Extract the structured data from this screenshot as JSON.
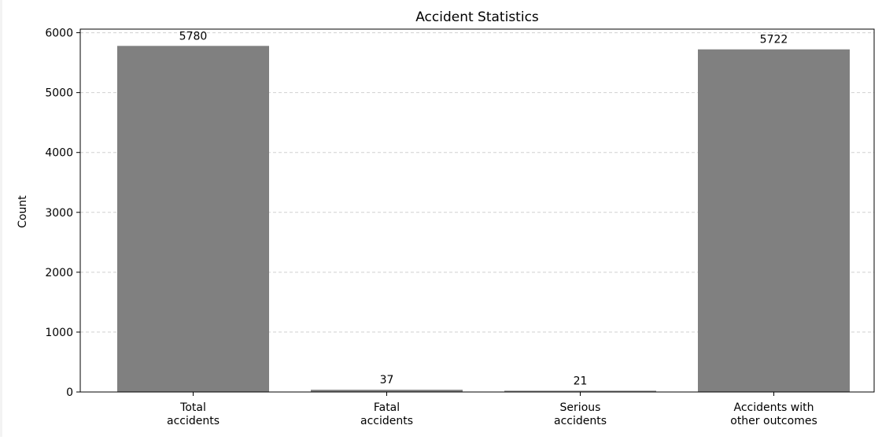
{
  "chart_data": {
    "type": "bar",
    "title": "Accident Statistics",
    "xlabel": "",
    "ylabel": "Count",
    "categories": [
      [
        "Total",
        "accidents"
      ],
      [
        "Fatal",
        "accidents"
      ],
      [
        "Serious",
        "accidents"
      ],
      [
        "Accidents with",
        "other outcomes"
      ]
    ],
    "values": [
      5780,
      37,
      21,
      5722
    ],
    "value_labels": [
      "5780",
      "37",
      "21",
      "5722"
    ],
    "ylim": [
      0,
      6060
    ],
    "yticks": [
      0,
      1000,
      2000,
      3000,
      4000,
      5000,
      6000
    ],
    "grid": "y-dashed",
    "legend": "none",
    "colors": {
      "bar": "#808080",
      "grid": "#d0d0d0",
      "axis": "#000000"
    }
  }
}
